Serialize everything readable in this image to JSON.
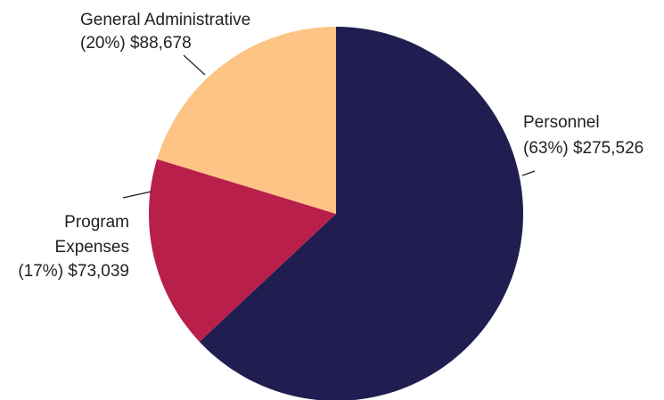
{
  "chart_data": {
    "type": "pie",
    "title": "",
    "slices": [
      {
        "name": "Personnel",
        "percent_label": "(63%) $275,526",
        "value": 275526,
        "percent": 63,
        "color": "#201e50"
      },
      {
        "name": "Program Expenses",
        "name_lines": [
          "Program",
          "Expenses"
        ],
        "percent_label": "(17%) $73,039",
        "value": 73039,
        "percent": 17,
        "color": "#b81f4b"
      },
      {
        "name": "General Administrative",
        "percent_label": "(20%) $88,678",
        "value": 88678,
        "percent": 20,
        "color": "#fdc485"
      }
    ],
    "start_angle_deg": 0,
    "direction": "clockwise",
    "legend": "none"
  }
}
